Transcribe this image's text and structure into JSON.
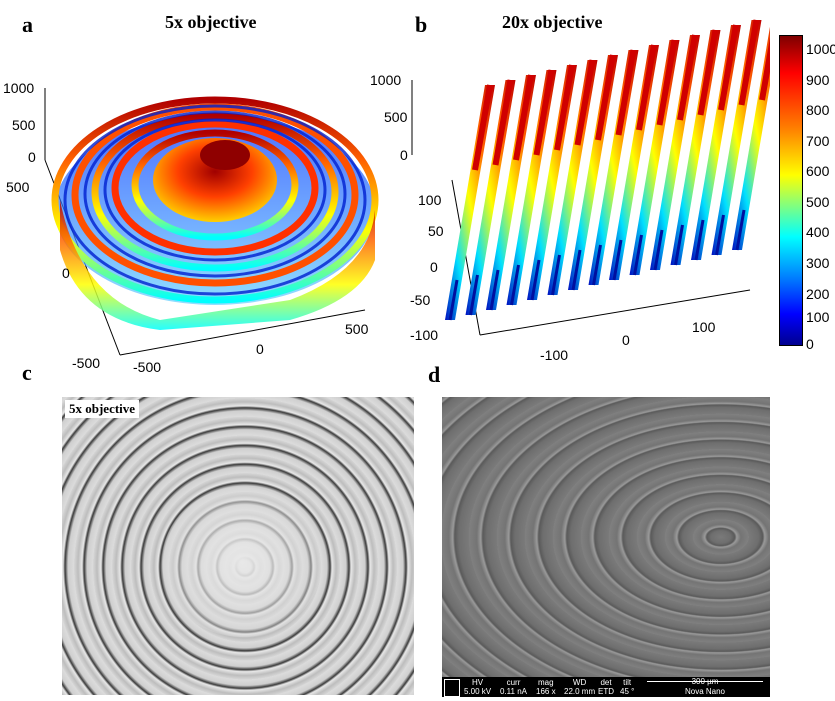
{
  "panels": {
    "a": {
      "letter": "a",
      "title": "5x objective",
      "z_ticks": [
        "1000",
        "500",
        "0"
      ],
      "y_ticks": [
        "500",
        "0",
        "-500"
      ],
      "x_ticks": [
        "-500",
        "0",
        "500"
      ]
    },
    "b": {
      "letter": "b",
      "title": "20x objective",
      "z_ticks": [
        "1000",
        "500",
        "0"
      ],
      "y_ticks": [
        "100",
        "50",
        "0",
        "-50",
        "-100"
      ],
      "x_ticks": [
        "-100",
        "0",
        "100"
      ]
    },
    "c": {
      "letter": "c",
      "label": "5x objective"
    },
    "d": {
      "letter": "d",
      "sem": {
        "hv_label": "HV",
        "hv_value": "5.00 kV",
        "curr_label": "curr",
        "curr_value": "0.11 nA",
        "mag_label": "mag",
        "mag_value": "166 x",
        "wd_label": "WD",
        "wd_value": "22.0 mm",
        "det_label": "det",
        "det_value": "ETD",
        "tilt_label": "tilt",
        "tilt_value": "45 °",
        "scale": "300 µm",
        "instrument": "Nova Nano"
      }
    }
  },
  "colorbar": {
    "ticks": [
      "1000",
      "900",
      "800",
      "700",
      "600",
      "500",
      "400",
      "300",
      "200",
      "100",
      "0"
    ],
    "colors": [
      "#7f0000",
      "#ff0000",
      "#ff8000",
      "#ffff00",
      "#80ff80",
      "#00ffff",
      "#0080ff",
      "#0000ff",
      "#00008f"
    ]
  }
}
